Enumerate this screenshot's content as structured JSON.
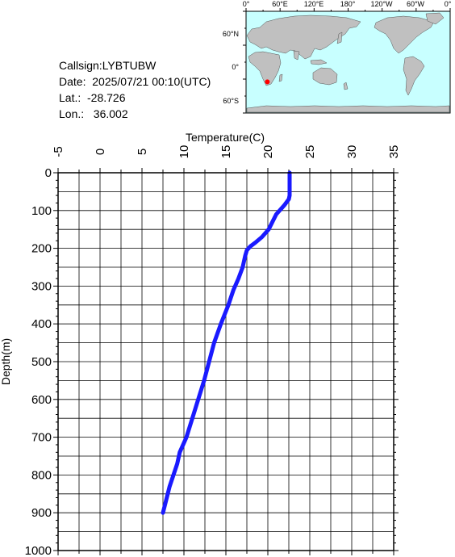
{
  "info": {
    "callsign": "Callsign:LYBTUBW",
    "date": "Date:  2025/07/21 00:10(UTC)",
    "lat": "Lat.:  -28.726",
    "lon": "Lon.:   36.002"
  },
  "map": {
    "lon_labels": [
      "0°",
      "60°E",
      "120°E",
      "180°",
      "120°W",
      "60°W",
      "0°"
    ],
    "lat_labels": [
      "60°N",
      "0°",
      "60°S"
    ],
    "marker": {
      "lat": -28.726,
      "lon": 36.002,
      "color": "#ff0000"
    },
    "land_color": "#c0c0c0",
    "ocean_color": "#c8ffff"
  },
  "chart_data": {
    "type": "line",
    "xlabel": "Temperature(C)",
    "ylabel": "Depth(m)",
    "xlim": [
      -5,
      35
    ],
    "ylim": [
      0,
      1000
    ],
    "y_inverted": true,
    "x_ticks": [
      -5,
      0,
      5,
      10,
      15,
      20,
      25,
      30,
      35
    ],
    "y_ticks": [
      0,
      100,
      200,
      300,
      400,
      500,
      600,
      700,
      800,
      900,
      1000
    ],
    "grid": true,
    "series": [
      {
        "color": "#1a1aff",
        "x": [
          22.6,
          22.6,
          22.6,
          22.6,
          22.5,
          22.0,
          21.0,
          20.1,
          19.3,
          18.5,
          17.9,
          17.5,
          17.3,
          17.0,
          16.5,
          15.9,
          15.3,
          14.4,
          13.6,
          13.0,
          12.4,
          11.7,
          11.0,
          10.3,
          9.5,
          9.2,
          8.3,
          7.5
        ],
        "y": [
          0,
          20,
          40,
          60,
          70,
          85,
          110,
          150,
          170,
          185,
          195,
          205,
          220,
          250,
          280,
          310,
          350,
          400,
          450,
          500,
          550,
          600,
          650,
          700,
          740,
          770,
          830,
          900
        ]
      }
    ]
  }
}
